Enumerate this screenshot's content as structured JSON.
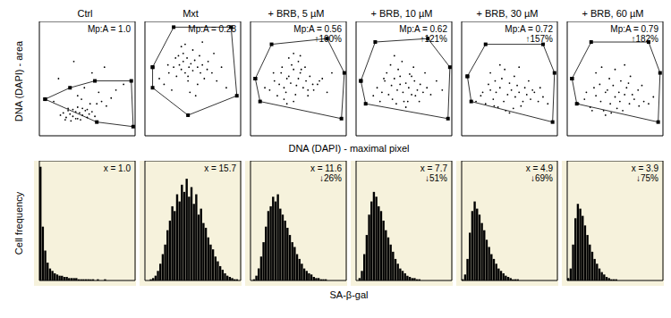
{
  "chart_data": [
    {
      "type": "scatter",
      "x_label": "DNA (DAPI) - maximal pixel",
      "y_label": "DNA (DAPI) - area",
      "xlim": [
        0,
        100
      ],
      "ylim": [
        0,
        100
      ],
      "xticks": [
        0,
        10,
        20,
        30,
        40,
        50,
        60,
        70,
        80,
        90,
        100
      ],
      "yticks": [
        0,
        10,
        20,
        30,
        40,
        50,
        60,
        70,
        80,
        90,
        100
      ],
      "tick_labels": false,
      "color": "#000000",
      "panels": [
        {
          "title": "Ctrl",
          "annotation": "Mp:A = 1.0",
          "x": [
            22,
            25,
            28,
            30,
            32,
            35,
            38,
            40,
            42,
            45,
            48,
            50,
            52,
            55,
            58,
            30,
            35,
            40,
            45,
            50,
            27,
            33,
            38,
            43,
            60,
            65,
            70,
            75,
            80,
            88,
            15,
            20,
            55,
            62,
            68,
            40,
            47,
            53,
            36,
            44
          ],
          "y": [
            18,
            20,
            16,
            22,
            19,
            17,
            21,
            15,
            20,
            18,
            22,
            16,
            19,
            21,
            17,
            24,
            23,
            25,
            24,
            23,
            14,
            13,
            15,
            14,
            28,
            30,
            26,
            33,
            40,
            45,
            30,
            50,
            55,
            38,
            60,
            35,
            42,
            28,
            65,
            32
          ],
          "gate": {
            "x": [
              6,
              32,
              58,
              96,
              98,
              60
            ],
            "y": [
              32,
              42,
              48,
              48,
              8,
              12
            ]
          }
        },
        {
          "title": "Mxt",
          "annotation": "Mp:A = 0.28",
          "x": [
            20,
            25,
            30,
            33,
            36,
            38,
            40,
            42,
            44,
            46,
            48,
            50,
            52,
            55,
            58,
            60,
            62,
            65,
            35,
            40,
            45,
            50,
            55,
            28,
            32,
            70,
            75,
            80,
            85,
            15,
            42,
            47,
            53,
            38,
            57,
            66,
            72,
            24,
            60,
            45
          ],
          "y": [
            45,
            55,
            60,
            52,
            62,
            58,
            65,
            55,
            68,
            60,
            63,
            57,
            66,
            60,
            55,
            62,
            50,
            58,
            70,
            72,
            48,
            75,
            45,
            40,
            68,
            55,
            48,
            60,
            42,
            50,
            80,
            38,
            35,
            78,
            70,
            65,
            72,
            62,
            82,
            52
          ],
          "gate": {
            "x": [
              8,
              30,
              90,
              96,
              45,
              8
            ],
            "y": [
              60,
              95,
              95,
              35,
              18,
              42
            ]
          }
        },
        {
          "title": "+ BRB, 5 µM",
          "annotation": "Mp:A = 0.56",
          "change": "↑100%",
          "x": [
            20,
            25,
            30,
            32,
            35,
            38,
            40,
            42,
            45,
            48,
            50,
            52,
            55,
            58,
            60,
            62,
            65,
            28,
            33,
            37,
            43,
            47,
            53,
            70,
            75,
            80,
            85,
            15,
            40,
            45,
            50,
            35,
            57,
            66,
            72,
            24,
            60,
            45,
            38,
            52
          ],
          "y": [
            40,
            48,
            45,
            55,
            42,
            50,
            52,
            46,
            58,
            44,
            50,
            55,
            42,
            48,
            40,
            52,
            45,
            35,
            60,
            38,
            62,
            36,
            58,
            45,
            50,
            38,
            55,
            42,
            68,
            30,
            65,
            32,
            60,
            40,
            48,
            55,
            35,
            72,
            28,
            70
          ],
          "gate": {
            "x": [
              5,
              22,
              80,
              98,
              95,
              10
            ],
            "y": [
              50,
              80,
              85,
              55,
              15,
              30
            ]
          }
        },
        {
          "title": "+ BRB, 10 µM",
          "annotation": "Mp:A = 0.62",
          "change": "↑121%",
          "x": [
            18,
            22,
            27,
            30,
            34,
            37,
            40,
            43,
            46,
            49,
            52,
            55,
            58,
            61,
            64,
            67,
            70,
            25,
            32,
            38,
            44,
            50,
            56,
            62,
            74,
            78,
            84,
            90,
            36,
            42,
            48,
            54,
            29,
            60,
            66,
            72,
            40,
            46,
            52,
            58
          ],
          "y": [
            35,
            42,
            38,
            48,
            36,
            44,
            50,
            40,
            52,
            38,
            46,
            42,
            36,
            48,
            40,
            45,
            38,
            30,
            55,
            32,
            58,
            30,
            54,
            35,
            42,
            36,
            48,
            40,
            62,
            28,
            65,
            30,
            50,
            60,
            30,
            55,
            70,
            45,
            25,
            52
          ],
          "gate": {
            "x": [
              5,
              20,
              75,
              98,
              96,
              10
            ],
            "y": [
              48,
              82,
              85,
              60,
              15,
              28
            ]
          }
        },
        {
          "title": "+ BRB, 30 µM",
          "annotation": "Mp:A = 0.72",
          "change": "↑157%",
          "x": [
            15,
            20,
            25,
            30,
            33,
            36,
            40,
            44,
            48,
            52,
            56,
            60,
            64,
            68,
            72,
            76,
            80,
            85,
            90,
            28,
            35,
            42,
            50,
            58,
            66,
            74,
            38,
            46,
            54,
            62,
            30,
            45,
            55,
            70,
            40,
            50,
            60,
            22,
            34,
            82
          ],
          "y": [
            30,
            35,
            28,
            40,
            32,
            38,
            42,
            30,
            36,
            40,
            34,
            38,
            30,
            36,
            32,
            38,
            30,
            34,
            28,
            45,
            48,
            50,
            46,
            44,
            42,
            40,
            25,
            22,
            24,
            26,
            55,
            58,
            52,
            48,
            62,
            20,
            60,
            38,
            26,
            42
          ],
          "gate": {
            "x": [
              6,
              25,
              85,
              97,
              95,
              10
            ],
            "y": [
              52,
              80,
              80,
              55,
              12,
              30
            ]
          }
        },
        {
          "title": "+ BRB, 60 µM",
          "annotation": "Mp:A = 0.79",
          "change": "↑182%",
          "x": [
            12,
            18,
            24,
            30,
            35,
            40,
            45,
            50,
            55,
            60,
            65,
            70,
            75,
            80,
            85,
            90,
            28,
            34,
            42,
            48,
            54,
            62,
            68,
            74,
            38,
            46,
            52,
            58,
            30,
            44,
            56,
            66,
            20,
            36,
            50,
            64,
            78,
            40,
            60,
            26
          ],
          "y": [
            28,
            32,
            25,
            35,
            30,
            38,
            28,
            34,
            30,
            36,
            28,
            32,
            26,
            30,
            28,
            34,
            42,
            45,
            40,
            44,
            38,
            42,
            36,
            40,
            22,
            20,
            24,
            22,
            55,
            50,
            48,
            52,
            38,
            60,
            58,
            46,
            44,
            18,
            62,
            22
          ],
          "gate": {
            "x": [
              5,
              25,
              85,
              97,
              95,
              10
            ],
            "y": [
              50,
              82,
              82,
              55,
              12,
              28
            ]
          }
        }
      ]
    },
    {
      "type": "histogram",
      "x_label": "SA-β-gal",
      "y_label": "Cell frequency",
      "xlim": [
        0,
        100
      ],
      "ylim": [
        0,
        100
      ],
      "xticks": [
        0,
        10,
        20,
        30,
        40,
        50,
        60,
        70,
        80,
        90,
        100
      ],
      "yticks": [
        0,
        10,
        20,
        30,
        40,
        50,
        60,
        70,
        80,
        90,
        100
      ],
      "tick_labels": false,
      "color": "#000000",
      "bins": [
        0,
        2.5,
        5,
        7.5,
        10,
        12.5,
        15,
        17.5,
        20,
        22.5,
        25,
        27.5,
        30,
        32.5,
        35,
        37.5,
        40,
        42.5,
        45,
        47.5,
        50,
        52.5,
        55,
        57.5,
        60,
        62.5,
        65,
        67.5,
        70,
        72.5,
        75,
        77.5,
        80,
        82.5,
        85,
        87.5,
        90,
        92.5,
        95,
        97.5,
        100
      ],
      "panels": [
        {
          "annotation": "x = 1.0",
          "counts": [
            95,
            45,
            25,
            15,
            10,
            8,
            6,
            5,
            4,
            4,
            3,
            3,
            2,
            2,
            2,
            2,
            1,
            1,
            1,
            1,
            1,
            1,
            1,
            0,
            1,
            0,
            0,
            1,
            0,
            0,
            0,
            0,
            0,
            0,
            0,
            0,
            0,
            0,
            0,
            0
          ]
        },
        {
          "annotation": "x = 15.7",
          "counts": [
            0,
            0,
            1,
            2,
            4,
            8,
            14,
            22,
            30,
            42,
            50,
            62,
            58,
            72,
            66,
            80,
            74,
            85,
            70,
            78,
            64,
            72,
            55,
            60,
            48,
            44,
            36,
            30,
            26,
            20,
            16,
            12,
            9,
            6,
            4,
            3,
            2,
            1,
            1,
            0
          ]
        },
        {
          "annotation": "x = 11.6",
          "change": "↓26%",
          "counts": [
            0,
            1,
            4,
            10,
            20,
            32,
            45,
            58,
            62,
            70,
            66,
            72,
            60,
            55,
            50,
            44,
            38,
            32,
            28,
            22,
            18,
            14,
            10,
            8,
            6,
            5,
            3,
            2,
            2,
            1,
            1,
            1,
            0,
            0,
            0,
            0,
            0,
            0,
            0,
            0
          ]
        },
        {
          "annotation": "x = 7.7",
          "change": "↓51%",
          "counts": [
            0,
            2,
            8,
            22,
            38,
            55,
            66,
            74,
            70,
            62,
            58,
            50,
            42,
            36,
            30,
            24,
            18,
            14,
            10,
            8,
            6,
            4,
            3,
            2,
            2,
            1,
            1,
            0,
            0,
            0,
            0,
            0,
            0,
            0,
            0,
            0,
            0,
            0,
            0,
            0
          ]
        },
        {
          "annotation": "x = 4.9",
          "change": "↓69%",
          "counts": [
            1,
            5,
            18,
            40,
            58,
            66,
            60,
            55,
            48,
            42,
            34,
            28,
            22,
            18,
            14,
            10,
            8,
            6,
            4,
            3,
            2,
            1,
            1,
            1,
            0,
            0,
            0,
            0,
            0,
            0,
            0,
            0,
            0,
            0,
            0,
            0,
            0,
            0,
            0,
            0
          ]
        },
        {
          "annotation": "x = 3.9",
          "change": "↓75%",
          "counts": [
            2,
            10,
            30,
            52,
            64,
            60,
            54,
            46,
            38,
            30,
            24,
            18,
            14,
            10,
            7,
            5,
            3,
            2,
            1,
            1,
            1,
            0,
            0,
            0,
            0,
            0,
            0,
            0,
            0,
            0,
            0,
            0,
            0,
            0,
            0,
            0,
            0,
            0,
            0,
            0
          ]
        }
      ]
    }
  ]
}
